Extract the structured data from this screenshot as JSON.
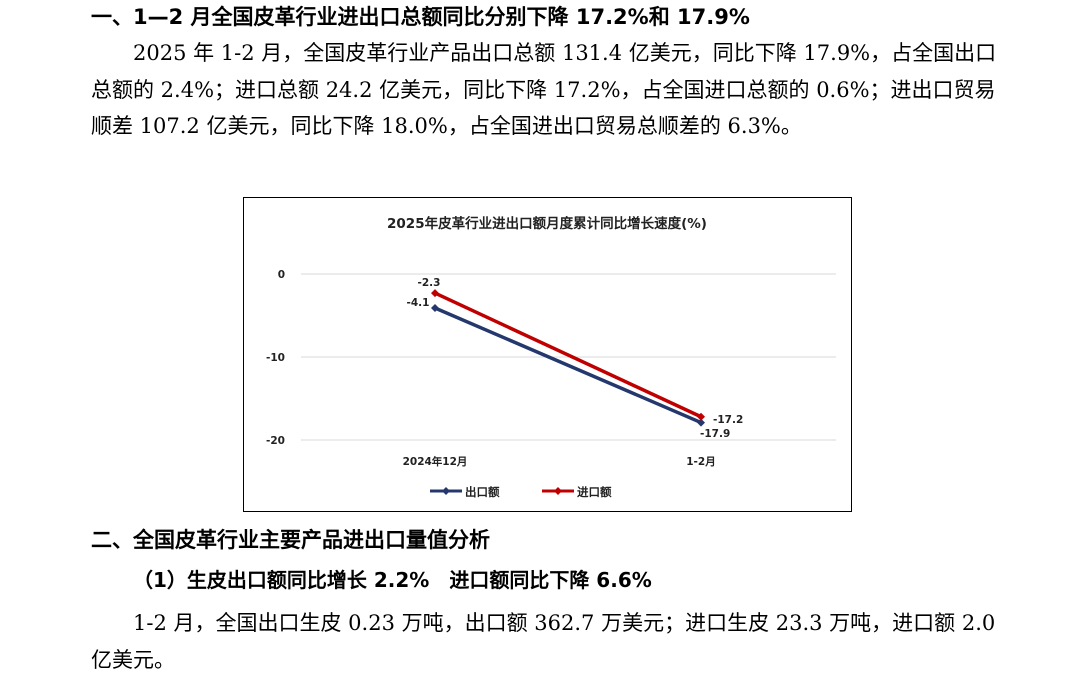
{
  "section1": {
    "heading": "一、1—2 月全国皮革行业进出口总额同比分别下降 17.2%和 17.9%",
    "paragraph": "2025 年 1-2 月，全国皮革行业产品出口总额 131.4 亿美元，同比下降 17.9%，占全国出口总额的 2.4%；进口总额 24.2 亿美元，同比下降 17.2%，占全国进口总额的 0.6%；进出口贸易顺差 107.2 亿美元，同比下降 18.0%，占全国进出口贸易总顺差的 6.3%。"
  },
  "chart_data": {
    "type": "line",
    "title": "2025年皮革行业进出口额月度累计同比增长速度(%)",
    "categories": [
      "2024年12月",
      "1-2月"
    ],
    "series": [
      {
        "name": "出口额",
        "values": [
          -4.1,
          -17.9
        ],
        "color": "#24386e"
      },
      {
        "name": "进口额",
        "values": [
          -2.3,
          -17.2
        ],
        "color": "#c00000"
      }
    ],
    "ylim": [
      -20,
      0
    ],
    "yticks": [
      "0",
      "-10",
      "-20"
    ],
    "data_labels": {
      "export": [
        "-4.1",
        "-17.9"
      ],
      "import": [
        "-2.3",
        "-17.2"
      ]
    },
    "grid": true,
    "legend_position": "bottom"
  },
  "section2": {
    "heading": "二、全国皮革行业主要产品进出口量值分析",
    "subheading": "（1）生皮出口额同比增长 2.2%　进口额同比下降 6.6%",
    "paragraph": "1-2 月，全国出口生皮 0.23 万吨，出口额 362.7 万美元；进口生皮 23.3 万吨，进口额 2.0 亿美元。"
  }
}
